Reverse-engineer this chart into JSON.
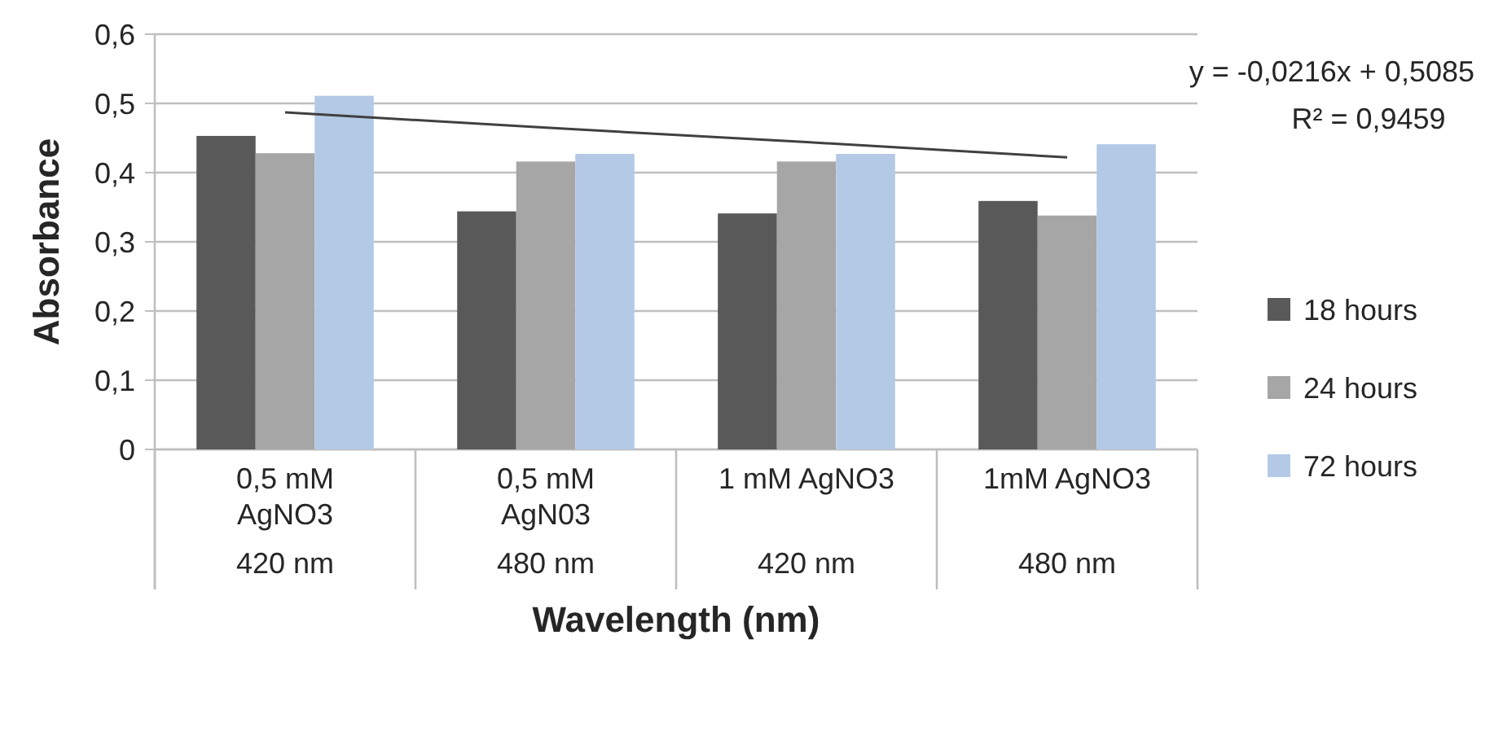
{
  "chart_data": {
    "type": "bar",
    "xlabel": "Wavelength (nm)",
    "ylabel": "Absorbance",
    "categories": [
      "0,5 mM\nAgNO3\n420 nm",
      "0,5 mM\nAgN03\n480 nm",
      "1 mM AgNO3\n420 nm",
      "1mM AgNO3\n480 nm"
    ],
    "series": [
      {
        "name": "18 hours",
        "color": "#595959",
        "values": [
          0.453,
          0.344,
          0.341,
          0.359
        ]
      },
      {
        "name": "24 hours",
        "color": "#a6a6a6",
        "values": [
          0.428,
          0.416,
          0.416,
          0.338
        ]
      },
      {
        "name": "72 hours",
        "color": "#b4c9e6",
        "values": [
          0.511,
          0.427,
          0.427,
          0.441
        ]
      },
      {
        "type": "line",
        "color": "#404040",
        "values": [
          0.487,
          0.465,
          0.444,
          0.422
        ]
      }
    ],
    "ylim": [
      0,
      0.6
    ],
    "yticks": [
      {
        "value": 0,
        "label": "0"
      },
      {
        "value": 0.1,
        "label": "0,1"
      },
      {
        "value": 0.2,
        "label": "0,2"
      },
      {
        "value": 0.3,
        "label": "0,3"
      },
      {
        "value": 0.4,
        "label": "0,4"
      },
      {
        "value": 0.5,
        "label": "0,5"
      },
      {
        "value": 0.6,
        "label": "0,6"
      }
    ],
    "grid": "y",
    "legend": "right",
    "annotations": [
      "y = -0,0216x + 0,5085",
      "R² = 0,9459"
    ]
  }
}
